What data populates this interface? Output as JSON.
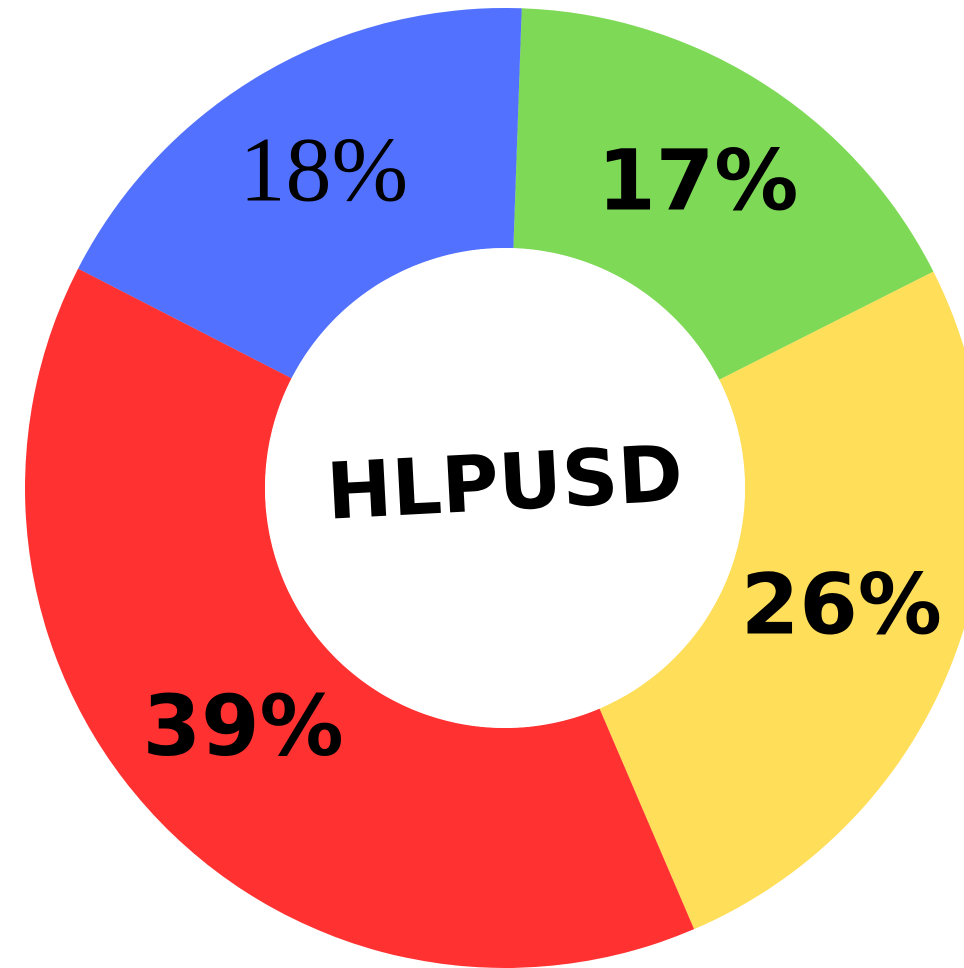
{
  "chart_data": {
    "type": "donut",
    "title": "HLPUSD",
    "categories": [
      null,
      null,
      null,
      null
    ],
    "values": [
      17,
      26,
      39,
      18
    ],
    "value_labels": [
      "17%",
      "26%",
      "39%",
      "18%"
    ],
    "colors": [
      "#7ed957",
      "#ffde59",
      "#ff3131",
      "#5271ff"
    ]
  }
}
